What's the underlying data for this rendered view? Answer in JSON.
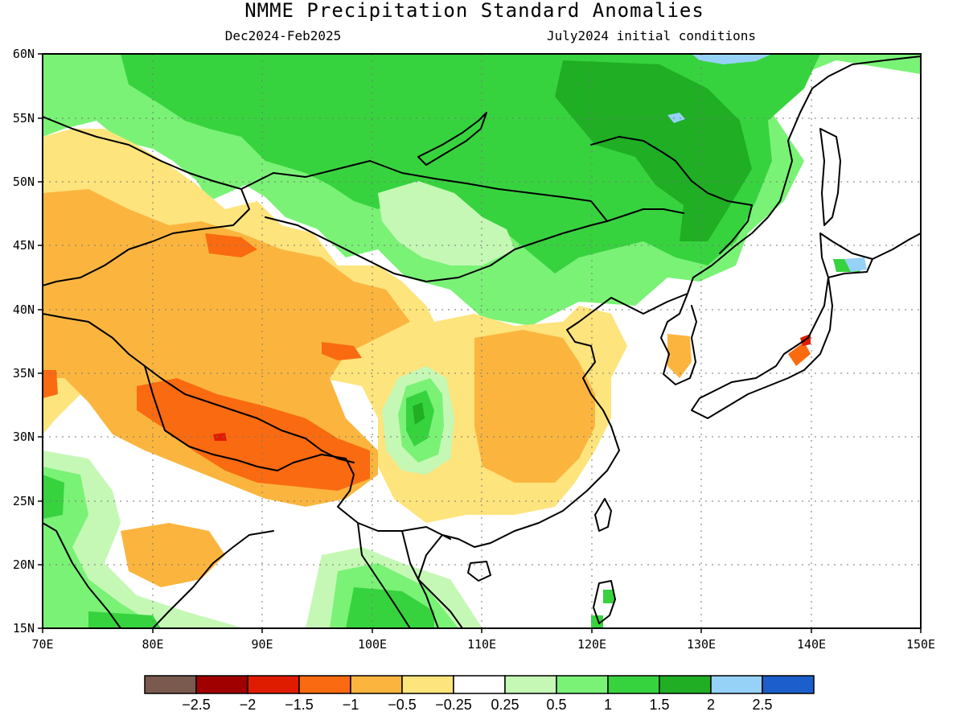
{
  "title": "NMME Precipitation Standard Anomalies",
  "subtitle_left": "Dec2024-Feb2025",
  "subtitle_right": "July2024 initial conditions",
  "map": {
    "lon_range": [
      70,
      150
    ],
    "lat_range": [
      15,
      60
    ],
    "lon_ticks": [
      "70E",
      "80E",
      "90E",
      "100E",
      "110E",
      "120E",
      "130E",
      "140E",
      "150E"
    ],
    "lat_ticks": [
      "60N",
      "55N",
      "50N",
      "45N",
      "40N",
      "35N",
      "30N",
      "25N",
      "20N",
      "15N"
    ]
  },
  "colorbar": {
    "colors": [
      "#7a5a4f",
      "#a10000",
      "#e01c00",
      "#fa6a10",
      "#fbb53f",
      "#fde47c",
      "#ffffff",
      "#c5f8b5",
      "#7af276",
      "#37d33f",
      "#1fae24",
      "#96d2f7",
      "#1c5fcc"
    ],
    "labels": [
      "-2.5",
      "-2",
      "-1.5",
      "-1",
      "-0.5",
      "-0.25",
      "0.25",
      "0.5",
      "1",
      "1.5",
      "2",
      "2.5"
    ]
  }
}
